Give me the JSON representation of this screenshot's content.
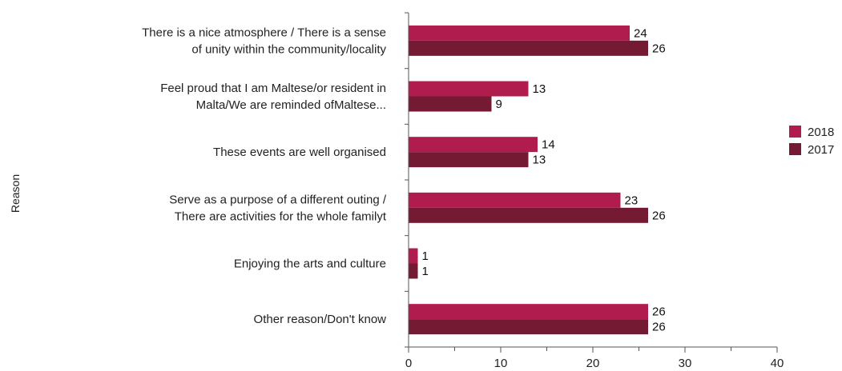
{
  "chart_data": {
    "type": "bar",
    "orientation": "horizontal",
    "ylabel": "Reason",
    "xlabel": "",
    "xlim": [
      0,
      40
    ],
    "xticks": [
      0,
      10,
      20,
      30,
      40
    ],
    "grid": false,
    "legend_position": "right",
    "categories": [
      [
        "There is a nice atmosphere / There is a sense",
        "of unity within the community/locality"
      ],
      [
        "Feel proud that I am Maltese/or resident in",
        "Malta/We are reminded ofMaltese..."
      ],
      [
        "These events are well organised"
      ],
      [
        "Serve as a purpose of a different outing /",
        "There are activities for the whole familyt"
      ],
      [
        "Enjoying the arts and culture"
      ],
      [
        "Other reason/Don't know"
      ]
    ],
    "series": [
      {
        "name": "2018",
        "color": "#b01c4e",
        "values": [
          24,
          13,
          14,
          23,
          1,
          26
        ]
      },
      {
        "name": "2017",
        "color": "#751a33",
        "values": [
          26,
          9,
          13,
          26,
          1,
          26
        ]
      }
    ]
  }
}
